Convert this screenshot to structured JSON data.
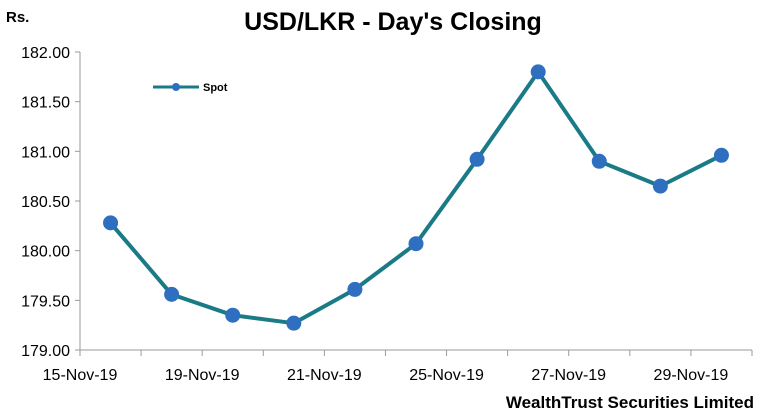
{
  "chart_data": {
    "type": "line",
    "title": "USD/LKR - Day's Closing",
    "y_unit_label": "Rs.",
    "ylim": [
      179.0,
      182.0
    ],
    "y_ticks": [
      "179.00",
      "179.50",
      "180.00",
      "180.50",
      "181.00",
      "181.50",
      "182.00"
    ],
    "y_tick_values": [
      179.0,
      179.5,
      180.0,
      180.5,
      181.0,
      181.5,
      182.0
    ],
    "x_tick_labels": [
      "15-Nov-19",
      "19-Nov-19",
      "21-Nov-19",
      "25-Nov-19",
      "27-Nov-19",
      "29-Nov-19"
    ],
    "legend_position": "top-left",
    "grid": false,
    "series": [
      {
        "name": "Spot",
        "color": "#1a7a86",
        "marker_color": "#2e6fbf",
        "values": [
          180.28,
          179.56,
          179.35,
          179.27,
          179.61,
          180.07,
          180.92,
          181.8,
          180.9,
          180.65,
          180.96
        ]
      }
    ]
  },
  "footer": {
    "credit": "WealthTrust Securities Limited"
  }
}
